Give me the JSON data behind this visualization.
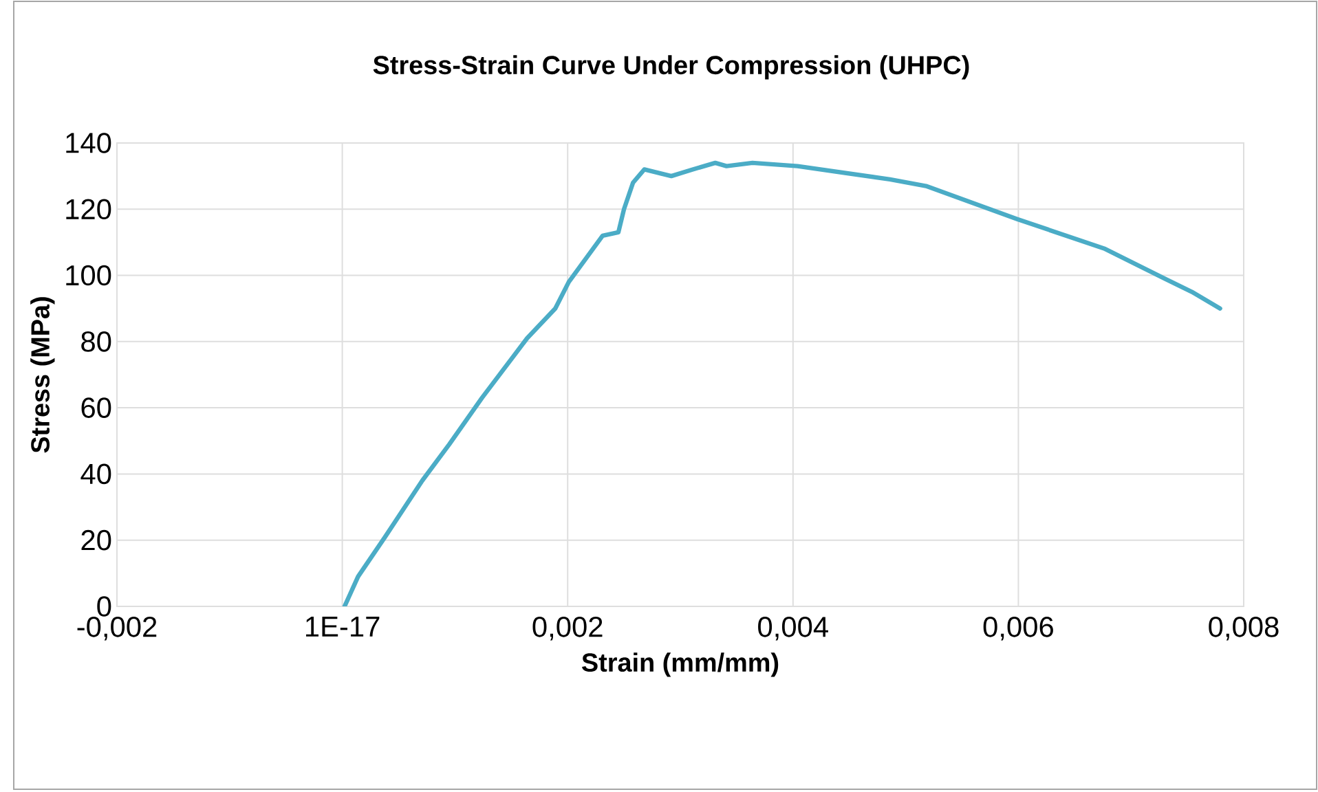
{
  "chart_data": {
    "type": "line",
    "title": "Stress-Strain Curve Under Compression  (UHPC)",
    "xlabel": "Strain (mm/mm)",
    "ylabel": "Stress (MPa)",
    "series": [
      {
        "color": "#4bacc6",
        "x": [
          2e-05,
          0.00014,
          0.00038,
          0.00071,
          0.00095,
          0.00124,
          0.00164,
          0.00189,
          0.00201,
          0.00231,
          0.00245,
          0.0025,
          0.00258,
          0.00268,
          0.00292,
          0.00311,
          0.00331,
          0.00341,
          0.00364,
          0.00404,
          0.00486,
          0.00518,
          0.00599,
          0.00677,
          0.0073,
          0.00754,
          0.00779
        ],
        "values": [
          0,
          9,
          21,
          38,
          49,
          63,
          81,
          90,
          98,
          112,
          113,
          120,
          128,
          132,
          130,
          132,
          134,
          133,
          134,
          133,
          129,
          127,
          117,
          108,
          99,
          95,
          90
        ]
      }
    ],
    "xlim": [
      -0.002,
      0.008
    ],
    "ylim": [
      0,
      140
    ],
    "xticks": [
      {
        "value": -0.002,
        "label": "-0,002"
      },
      {
        "value": 0,
        "label": "1E-17"
      },
      {
        "value": 0.002,
        "label": "0,002"
      },
      {
        "value": 0.004,
        "label": "0,004"
      },
      {
        "value": 0.006,
        "label": "0,006"
      },
      {
        "value": 0.008,
        "label": "0,008"
      }
    ],
    "yticks": [
      0,
      20,
      40,
      60,
      80,
      100,
      120,
      140
    ],
    "grid": true,
    "legend": false,
    "marker": "none",
    "line_style": "solid"
  }
}
